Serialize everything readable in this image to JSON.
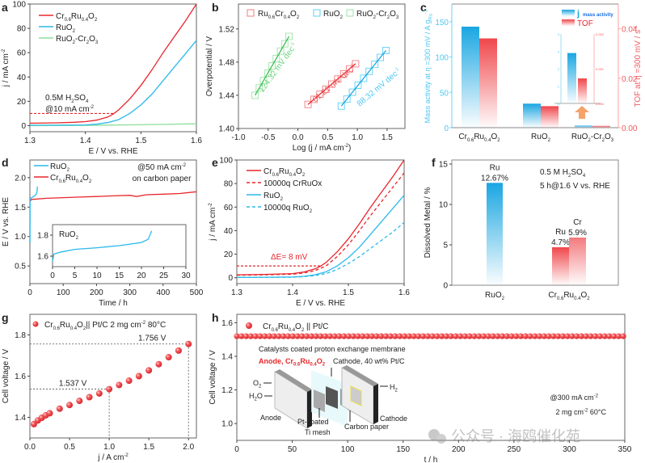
{
  "chart_data": [
    {
      "panel": "a",
      "type": "line",
      "xlabel": "E / V vs. RHE",
      "ylabel": "j / mA cm^-2",
      "xlim": [
        1.3,
        1.6
      ],
      "ylim": [
        -5,
        100
      ],
      "xticks": [
        1.3,
        1.4,
        1.5,
        1.6
      ],
      "yticks": [
        0,
        20,
        40,
        60,
        80,
        100
      ],
      "legend_position": "top-left",
      "annotation": [
        "0.5M H2SO4",
        "@10 mA cm^-2"
      ],
      "reference_line": {
        "y": 10,
        "x_end": 1.45,
        "color": "#e8262b"
      },
      "series": [
        {
          "name": "Cr0.6Ru0.4O2",
          "color": "#e8262b",
          "x": [
            1.3,
            1.35,
            1.38,
            1.4,
            1.42,
            1.44,
            1.45,
            1.46,
            1.48,
            1.5,
            1.52,
            1.54,
            1.56,
            1.58,
            1.6
          ],
          "y": [
            2,
            2.3,
            2.8,
            3.3,
            4.5,
            7,
            9.5,
            13,
            22,
            33,
            46,
            60,
            73,
            86,
            100
          ]
        },
        {
          "name": "RuO2",
          "color": "#2ab9ec",
          "x": [
            1.3,
            1.35,
            1.4,
            1.42,
            1.44,
            1.46,
            1.48,
            1.5,
            1.52,
            1.54,
            1.56,
            1.58,
            1.6
          ],
          "y": [
            0.3,
            0.4,
            0.6,
            1.2,
            2.5,
            5,
            10,
            17,
            26,
            37,
            48,
            59,
            70
          ]
        },
        {
          "name": "RuO2-Cr2O3",
          "color": "#8fdf9c",
          "x": [
            1.3,
            1.4,
            1.5,
            1.6
          ],
          "y": [
            0,
            0.2,
            0.7,
            1.5
          ]
        }
      ]
    },
    {
      "panel": "b",
      "type": "scatter",
      "xlabel": "Log (j / mA cm^-2)",
      "ylabel": "Overpotential / V",
      "xlim": [
        -1.0,
        1.8
      ],
      "ylim": [
        1.4,
        1.55
      ],
      "xticks": [
        -1.0,
        -0.5,
        0.0,
        0.5,
        1.0,
        1.5
      ],
      "yticks": [
        1.4,
        1.44,
        1.48,
        1.52
      ],
      "legend_position": "top",
      "series": [
        {
          "name": "Ru0.6Cr0.4O2",
          "color": "#f07f83",
          "line_color": "#e8262b",
          "slope_label": "61.21 mV dec^-1",
          "x_range": [
            0.17,
            0.97
          ],
          "y_range": [
            1.429,
            1.478
          ]
        },
        {
          "name": "RuO2",
          "color": "#5fd0f5",
          "line_color": "#1aa6e2",
          "slope_label": "88.32 mV dec^-1",
          "x_range": [
            0.73,
            1.48
          ],
          "y_range": [
            1.427,
            1.494
          ]
        },
        {
          "name": "RuO2-Cr2O3",
          "color": "#9ee3a8",
          "line_color": "#3cbf55",
          "slope_label": "124.32 mV dec^-1",
          "x_range": [
            -0.72,
            -0.15
          ],
          "y_range": [
            1.44,
            1.511
          ]
        }
      ]
    },
    {
      "panel": "c",
      "type": "bar",
      "categories": [
        "Cr0.6Ru0.4O2",
        "RuO2",
        "RuO2-Cr2O3"
      ],
      "ylabel_left": "Mass activity at η =300 mV / A g_Ru^-1",
      "ylabel_right": "TOF at η =300 mV / s^-1",
      "ylim_left": [
        0,
        175
      ],
      "ylim_right": [
        0,
        0.05
      ],
      "yticks_left": [
        0,
        50,
        100,
        150
      ],
      "yticks_right": [
        0.0,
        0.02,
        0.04
      ],
      "legend_position": "top-right",
      "series": [
        {
          "name": "j mass activity",
          "color": "#1aa6e2",
          "axis": "left",
          "values": [
            143,
            34,
            2.9
          ]
        },
        {
          "name": "TOF",
          "color": "#f0474c",
          "axis": "right",
          "values": [
            0.0361,
            0.0087,
            0.00072
          ]
        }
      ],
      "inset": {
        "left_ticks": [
          0,
          1,
          2,
          3,
          4
        ],
        "right_ticks": [
          "0.000",
          "0.001",
          "0.002"
        ],
        "mass_activity": 2.9,
        "tof": 0.00072
      }
    },
    {
      "panel": "d",
      "type": "line",
      "xlabel": "Time / h",
      "ylabel": "E / V vs. RHE",
      "xlim": [
        0,
        500
      ],
      "ylim": [
        0.2,
        2.3
      ],
      "xticks": [
        0,
        100,
        200,
        300,
        400,
        500
      ],
      "yticks": [
        0.5,
        1.0,
        1.5,
        2.0
      ],
      "legend_position": "top-left",
      "annotation": [
        "@50 mA cm^-2",
        "on carbon paper"
      ],
      "series": [
        {
          "name": "RuO2",
          "color": "#2ab9ec",
          "x": [
            0,
            0.5,
            2,
            8,
            14,
            18,
            21,
            22.5
          ],
          "y": [
            0.9,
            1.62,
            1.65,
            1.67,
            1.69,
            1.71,
            1.75,
            1.85
          ]
        },
        {
          "name": "Cr0.6Ru0.4O2",
          "color": "#e8262b",
          "x": [
            0,
            5,
            50,
            100,
            150,
            200,
            250,
            300,
            320,
            350,
            400,
            450,
            500
          ],
          "y": [
            1.6,
            1.63,
            1.65,
            1.66,
            1.67,
            1.68,
            1.69,
            1.7,
            1.68,
            1.71,
            1.72,
            1.73,
            1.76
          ]
        }
      ],
      "inset": {
        "title": "RuO2",
        "xlim": [
          0,
          30
        ],
        "ylim": [
          1.5,
          1.9
        ],
        "xticks": [
          0,
          5,
          10,
          15,
          20,
          25,
          30
        ],
        "yticks": [
          1.6,
          1.8
        ],
        "x": [
          0,
          0.3,
          2,
          5,
          10,
          15,
          20,
          21.5,
          22.3
        ],
        "y": [
          1.55,
          1.62,
          1.64,
          1.665,
          1.68,
          1.7,
          1.73,
          1.76,
          1.84
        ]
      }
    },
    {
      "panel": "e",
      "type": "line",
      "xlabel": "E / V vs. RHE",
      "ylabel": "j / mA cm^-2",
      "xlim": [
        1.3,
        1.6
      ],
      "ylim": [
        -5,
        100
      ],
      "xticks": [
        1.3,
        1.4,
        1.5,
        1.6
      ],
      "yticks": [
        0,
        20,
        40,
        60,
        80,
        100
      ],
      "legend_position": "top-left",
      "annotation": "ΔE= 8 mV",
      "series": [
        {
          "name": "Cr0.6Ru0.4O2",
          "color": "#e8262b",
          "dash": false,
          "x": [
            1.3,
            1.35,
            1.4,
            1.42,
            1.44,
            1.45,
            1.46,
            1.48,
            1.5,
            1.52,
            1.54,
            1.56,
            1.58,
            1.6
          ],
          "y": [
            2.5,
            2.8,
            3.5,
            4.8,
            7.5,
            9.8,
            13,
            22,
            33,
            46,
            60,
            73,
            86,
            100
          ]
        },
        {
          "name": "10000q CrRuOx",
          "color": "#e8262b",
          "dash": true,
          "x": [
            1.3,
            1.35,
            1.4,
            1.42,
            1.44,
            1.46,
            1.48,
            1.5,
            1.52,
            1.54,
            1.56,
            1.58,
            1.6
          ],
          "y": [
            2.2,
            2.5,
            3,
            4,
            6,
            10,
            18,
            28,
            40,
            53,
            65,
            77,
            89
          ]
        },
        {
          "name": "RuO2",
          "color": "#2ab9ec",
          "dash": false,
          "x": [
            1.3,
            1.35,
            1.4,
            1.42,
            1.44,
            1.46,
            1.48,
            1.5,
            1.52,
            1.54,
            1.56,
            1.58,
            1.6
          ],
          "y": [
            0.3,
            0.4,
            0.6,
            1.2,
            2.5,
            5,
            10,
            17,
            26,
            37,
            48,
            59,
            70
          ]
        },
        {
          "name": "10000q RuO2",
          "color": "#2ab9ec",
          "dash": true,
          "x": [
            1.3,
            1.35,
            1.4,
            1.42,
            1.44,
            1.46,
            1.48,
            1.5,
            1.52,
            1.54,
            1.56,
            1.58,
            1.6
          ],
          "y": [
            0.2,
            0.3,
            0.5,
            0.9,
            1.8,
            3.5,
            7,
            12,
            18,
            25,
            32,
            39,
            47
          ]
        }
      ],
      "reference_line": {
        "y": 10,
        "x_end": 1.45,
        "color": "#e8262b"
      }
    },
    {
      "panel": "f",
      "type": "bar",
      "ylabel": "Dissolved Metal / %",
      "ylim": [
        0,
        15.5
      ],
      "yticks": [
        0,
        5,
        10,
        15
      ],
      "categories": [
        "RuO2",
        "Cr0.6Ru0.4O2"
      ],
      "annotation": [
        "0.5 M H2SO4",
        "5 h@1.6 V vs. RHE"
      ],
      "bars": [
        {
          "category": "RuO2",
          "element": "Ru",
          "value": 12.67,
          "label": "12.67%",
          "color": "#1aa6e2"
        },
        {
          "category": "Cr0.6Ru0.4O2",
          "element": "Ru",
          "value": 4.7,
          "label": "4.7%",
          "color": "#f0474c"
        },
        {
          "category": "Cr0.6Ru0.4O2",
          "element": "Cr",
          "value": 5.9,
          "label": "5.9%",
          "color": "#f37a7e"
        }
      ]
    },
    {
      "panel": "g",
      "type": "scatter",
      "xlabel": "j / A cm^-2",
      "ylabel": "Cell voltage / V",
      "xlim": [
        0,
        2.1
      ],
      "ylim": [
        1.3,
        1.9
      ],
      "xticks": [
        0.0,
        0.5,
        1.0,
        1.5,
        2.0
      ],
      "yticks": [
        1.4,
        1.6,
        1.8
      ],
      "legend": "Cr0.6Ru0.4O2|| Pt/C  2 mg cm^-2 80°C",
      "legend_position": "top-left",
      "color": "#f0474c",
      "x": [
        0.05,
        0.1,
        0.15,
        0.2,
        0.25,
        0.375,
        0.5,
        0.625,
        0.75,
        0.875,
        1.0,
        1.125,
        1.25,
        1.375,
        1.5,
        1.625,
        1.75,
        1.875,
        2.0
      ],
      "y": [
        1.367,
        1.385,
        1.398,
        1.41,
        1.42,
        1.442,
        1.46,
        1.48,
        1.498,
        1.516,
        1.537,
        1.557,
        1.578,
        1.6,
        1.628,
        1.658,
        1.692,
        1.724,
        1.756
      ],
      "markers": [
        {
          "x": 1.0,
          "y": 1.537,
          "label": "1.537 V"
        },
        {
          "x": 2.0,
          "y": 1.756,
          "label": "1.756 V"
        }
      ]
    },
    {
      "panel": "h",
      "type": "scatter",
      "xlabel": "t / h",
      "ylabel": "Cell voltage / V",
      "xlim": [
        0,
        350
      ],
      "ylim": [
        0.9,
        1.65
      ],
      "xticks": [
        0,
        50,
        100,
        150,
        200,
        250,
        300,
        350
      ],
      "yticks": [
        1.0,
        1.2,
        1.4,
        1.6
      ],
      "legend": "Cr0.6Ru0.4O2 || Pt/C",
      "legend_position": "top-left",
      "color": "#f0474c",
      "constant_y": 1.52,
      "annotation": [
        "@300 mA cm^-2",
        "2 mg cm^-2 60°C"
      ],
      "schematic": {
        "title": "Catalysts coated proton exchange membrane",
        "anode_label": "Anode, Cr0.6Ru0.4O2",
        "cathode_label": "Cathode, 40 wt% Pt/C",
        "labels": {
          "o2": "O2",
          "h2o": "H2O",
          "h2": "H2",
          "anode": "Anode",
          "cathode": "Cathode",
          "ti_mesh": "Pt-coated Ti mesh",
          "carbon_paper": "Carbon paper"
        }
      }
    }
  ],
  "panel_letters": [
    "a",
    "b",
    "c",
    "d",
    "e",
    "f",
    "g",
    "h"
  ],
  "watermark": "公众号 · 海鸥催化苑"
}
